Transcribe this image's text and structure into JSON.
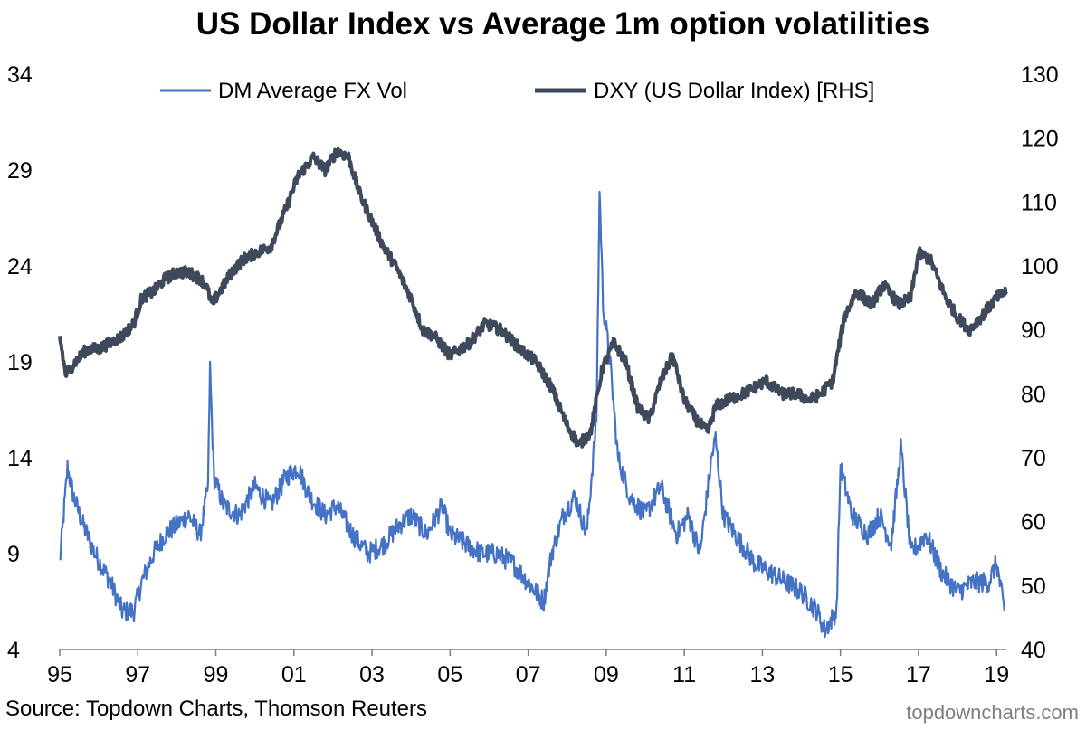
{
  "footer": {
    "source": "Source: Topdown Charts, Thomson Reuters",
    "watermark": "topdowncharts.com"
  },
  "chart_data": {
    "type": "line",
    "title": "US Dollar Index vs Average 1m option volatilities",
    "xlabel": "",
    "ylabel": "",
    "x_tick_labels": [
      "95",
      "97",
      "99",
      "01",
      "03",
      "05",
      "07",
      "09",
      "11",
      "13",
      "15",
      "17",
      "19"
    ],
    "x_tick_values": [
      1995,
      1997,
      1999,
      2001,
      2003,
      2005,
      2007,
      2009,
      2011,
      2013,
      2015,
      2017,
      2019
    ],
    "xlim": [
      1995,
      2019.25
    ],
    "y_left": {
      "lim": [
        4,
        34
      ],
      "ticks": [
        4,
        9,
        14,
        19,
        24,
        29,
        34
      ]
    },
    "y_right": {
      "lim": [
        40,
        130
      ],
      "ticks": [
        40,
        50,
        60,
        70,
        80,
        90,
        100,
        110,
        120,
        130
      ]
    },
    "legend_position": "top",
    "grid": false,
    "series": [
      {
        "name": "DM Average FX Vol",
        "axis": "left",
        "color": "#4472C4",
        "x": [
          1995.0,
          1995.2,
          1995.35,
          1995.6,
          1995.9,
          1996.3,
          1996.6,
          1996.9,
          1997.1,
          1997.4,
          1997.7,
          1998.0,
          1998.3,
          1998.6,
          1998.8,
          1998.85,
          1998.95,
          1999.2,
          1999.6,
          2000.0,
          2000.4,
          2000.8,
          2001.1,
          2001.4,
          2001.8,
          2002.1,
          2002.5,
          2002.9,
          2003.3,
          2003.7,
          2004.0,
          2004.4,
          2004.8,
          2005.0,
          2005.4,
          2005.8,
          2006.2,
          2006.6,
          2007.0,
          2007.4,
          2007.6,
          2007.9,
          2008.2,
          2008.5,
          2008.75,
          2008.83,
          2008.92,
          2009.1,
          2009.3,
          2009.6,
          2010.0,
          2010.4,
          2010.8,
          2011.1,
          2011.4,
          2011.7,
          2011.8,
          2012.0,
          2012.3,
          2012.8,
          2013.2,
          2013.6,
          2014.0,
          2014.4,
          2014.6,
          2014.9,
          2015.0,
          2015.3,
          2015.7,
          2016.0,
          2016.3,
          2016.55,
          2016.8,
          2017.2,
          2017.6,
          2018.0,
          2018.4,
          2018.8,
          2019.0,
          2019.2
        ],
        "values": [
          8.5,
          13.5,
          12.0,
          10.5,
          9.0,
          7.5,
          6.0,
          6.0,
          7.5,
          9.0,
          10.0,
          10.5,
          11.0,
          10.0,
          12.5,
          18.7,
          13.0,
          11.5,
          11.0,
          12.5,
          11.5,
          13.0,
          13.5,
          12.0,
          11.0,
          11.5,
          10.0,
          9.0,
          9.5,
          10.5,
          11.0,
          10.0,
          11.5,
          10.0,
          9.5,
          9.0,
          9.0,
          8.5,
          7.5,
          6.5,
          9.0,
          11.0,
          12.0,
          10.0,
          16.0,
          28.0,
          22.0,
          19.0,
          14.0,
          12.0,
          11.0,
          12.5,
          10.0,
          11.0,
          9.0,
          14.0,
          15.0,
          11.0,
          10.0,
          8.5,
          8.0,
          7.5,
          7.0,
          6.0,
          5.0,
          6.0,
          13.5,
          11.0,
          10.0,
          11.0,
          9.5,
          14.5,
          9.0,
          10.0,
          8.0,
          7.0,
          7.5,
          7.5,
          8.5,
          6.0
        ]
      },
      {
        "name": "DXY (US Dollar Index) [RHS]",
        "axis": "right",
        "color": "#3E4A5C",
        "x": [
          1995.0,
          1995.15,
          1995.4,
          1995.7,
          1996.0,
          1996.3,
          1996.6,
          1996.9,
          1997.1,
          1997.4,
          1997.7,
          1998.0,
          1998.3,
          1998.6,
          1998.75,
          1998.9,
          1999.1,
          1999.4,
          1999.7,
          2000.0,
          2000.4,
          2000.8,
          2001.1,
          2001.5,
          2001.8,
          2002.1,
          2002.4,
          2002.7,
          2003.0,
          2003.3,
          2003.6,
          2004.0,
          2004.3,
          2004.6,
          2005.0,
          2005.5,
          2005.9,
          2006.3,
          2006.8,
          2007.2,
          2007.6,
          2008.0,
          2008.3,
          2008.6,
          2008.9,
          2009.2,
          2009.5,
          2009.8,
          2010.1,
          2010.4,
          2010.7,
          2011.0,
          2011.3,
          2011.6,
          2011.8,
          2012.1,
          2012.5,
          2012.8,
          2013.1,
          2013.5,
          2013.9,
          2014.2,
          2014.5,
          2014.8,
          2015.1,
          2015.4,
          2015.8,
          2016.1,
          2016.5,
          2016.8,
          2017.0,
          2017.3,
          2017.7,
          2018.0,
          2018.3,
          2018.6,
          2019.0,
          2019.25
        ],
        "values": [
          89,
          83,
          85,
          87,
          87,
          88,
          89,
          91,
          95,
          96,
          98,
          99,
          99,
          98,
          97,
          94,
          96,
          99,
          101,
          102,
          103,
          109,
          114,
          117,
          115,
          118,
          117,
          111,
          107,
          103,
          100,
          95,
          90,
          89,
          86,
          88,
          91,
          90,
          87,
          85,
          81,
          75,
          72,
          74,
          84,
          88,
          85,
          78,
          76,
          82,
          86,
          79,
          76,
          74,
          78,
          79,
          80,
          81,
          82,
          80,
          80,
          79,
          80,
          82,
          92,
          96,
          94,
          97,
          94,
          95,
          102,
          101,
          95,
          92,
          90,
          92,
          95,
          96
        ]
      }
    ]
  }
}
